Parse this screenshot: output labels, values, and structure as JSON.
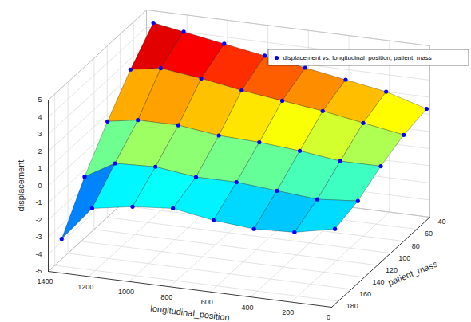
{
  "chart_data": {
    "type": "surface",
    "x_label": "longitudinal_position",
    "y_label": "patient_mass",
    "z_label": "displacement",
    "x": [
      0,
      200,
      400,
      600,
      800,
      1000,
      1200,
      1350
    ],
    "y": [
      45,
      80,
      115,
      150,
      185
    ],
    "z": [
      [
        1.5,
        2.2,
        2.6,
        3.0,
        3.4,
        3.8,
        4.2,
        4.5
      ],
      [
        1.2,
        1.6,
        2.0,
        2.3,
        2.6,
        3.0,
        3.3,
        3.0
      ],
      [
        0.6,
        0.6,
        0.9,
        1.1,
        1.2,
        1.5,
        1.5,
        1.2
      ],
      [
        -0.2,
        -0.4,
        -0.2,
        0.0,
        0.0,
        0.3,
        0.2,
        -0.8
      ],
      [
        -0.6,
        -1.1,
        -1.2,
        -1.0,
        -0.6,
        -0.8,
        -1.2,
        -3.2
      ]
    ],
    "series": [
      {
        "name": "displacement vs. longitudinal_position, patient_mass",
        "color": "#0000ff",
        "marker": "o"
      }
    ],
    "xlim": [
      0,
      1400
    ],
    "xticks": [
      0,
      200,
      400,
      600,
      800,
      1000,
      1200,
      1400
    ],
    "ylim": [
      40,
      190
    ],
    "yticks": [
      40,
      60,
      80,
      100,
      120,
      140,
      160,
      180
    ],
    "zlim": [
      -5,
      5
    ],
    "zticks": [
      -5,
      -4,
      -3,
      -2,
      -1,
      0,
      1,
      2,
      3,
      4,
      5
    ],
    "grid": true,
    "legend": "northeast"
  }
}
